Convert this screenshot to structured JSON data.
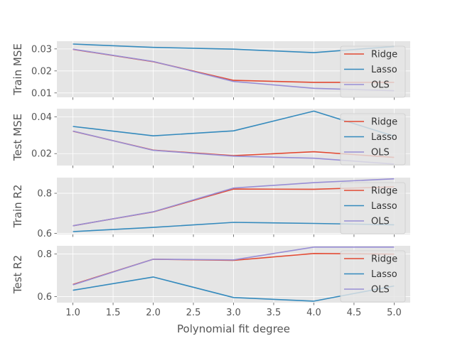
{
  "chart_data": {
    "type": "line",
    "xlabel": "Polynomial fit degree",
    "x": [
      1,
      2,
      3,
      4,
      5
    ],
    "xlim": [
      0.8,
      5.2
    ],
    "xticks": [
      1.0,
      1.5,
      2.0,
      2.5,
      3.0,
      3.5,
      4.0,
      4.5,
      5.0
    ],
    "xtick_labels": [
      "1.0",
      "1.5",
      "2.0",
      "2.5",
      "3.0",
      "3.5",
      "4.0",
      "4.5",
      "5.0"
    ],
    "legend_position": "right",
    "colors": {
      "Ridge": "#E24A33",
      "Lasso": "#348ABD",
      "OLS": "#988ED5"
    },
    "legend_labels": [
      "Ridge",
      "Lasso",
      "OLS"
    ],
    "subplots": [
      {
        "ylabel": "Train MSE",
        "ylim": [
          0.008,
          0.0335
        ],
        "yticks": [
          0.01,
          0.02,
          0.03
        ],
        "ytick_labels": [
          "0.01",
          "0.02",
          "0.03"
        ],
        "series": [
          {
            "name": "Ridge",
            "values": [
              0.0298,
              0.0242,
              0.0157,
              0.0148,
              0.0148
            ]
          },
          {
            "name": "Lasso",
            "values": [
              0.0322,
              0.0307,
              0.0299,
              0.0283,
              0.0311
            ]
          },
          {
            "name": "OLS",
            "values": [
              0.0299,
              0.0243,
              0.0152,
              0.0121,
              0.011
            ]
          }
        ]
      },
      {
        "ylabel": "Test MSE",
        "ylim": [
          0.0135,
          0.0445
        ],
        "yticks": [
          0.02,
          0.04
        ],
        "ytick_labels": [
          "0.02",
          "0.04"
        ],
        "series": [
          {
            "name": "Ridge",
            "values": [
              0.0322,
              0.0219,
              0.0189,
              0.021,
              0.0179
            ]
          },
          {
            "name": "Lasso",
            "values": [
              0.0348,
              0.0297,
              0.0324,
              0.0432,
              0.0295
            ]
          },
          {
            "name": "OLS",
            "values": [
              0.0323,
              0.0218,
              0.0186,
              0.0175,
              0.0143
            ]
          }
        ]
      },
      {
        "ylabel": "Train R2",
        "ylim": [
          0.595,
          0.878
        ],
        "yticks": [
          0.6,
          0.8
        ],
        "ytick_labels": [
          "0.6",
          "0.8"
        ],
        "series": [
          {
            "name": "Ridge",
            "values": [
              0.638,
              0.707,
              0.821,
              0.82,
              0.832
            ]
          },
          {
            "name": "Lasso",
            "values": [
              0.609,
              0.63,
              0.655,
              0.65,
              0.643
            ]
          },
          {
            "name": "OLS",
            "values": [
              0.638,
              0.708,
              0.826,
              0.853,
              0.872
            ]
          }
        ]
      },
      {
        "ylabel": "Test R2",
        "ylim": [
          0.572,
          0.838
        ],
        "yticks": [
          0.6,
          0.8
        ],
        "ytick_labels": [
          "0.6",
          "0.8"
        ],
        "series": [
          {
            "name": "Ridge",
            "values": [
              0.657,
              0.775,
              0.77,
              0.802,
              0.799
            ]
          },
          {
            "name": "Lasso",
            "values": [
              0.63,
              0.692,
              0.596,
              0.579,
              0.65
            ]
          },
          {
            "name": "OLS",
            "values": [
              0.655,
              0.775,
              0.772,
              0.832,
              0.832
            ]
          }
        ]
      }
    ]
  }
}
